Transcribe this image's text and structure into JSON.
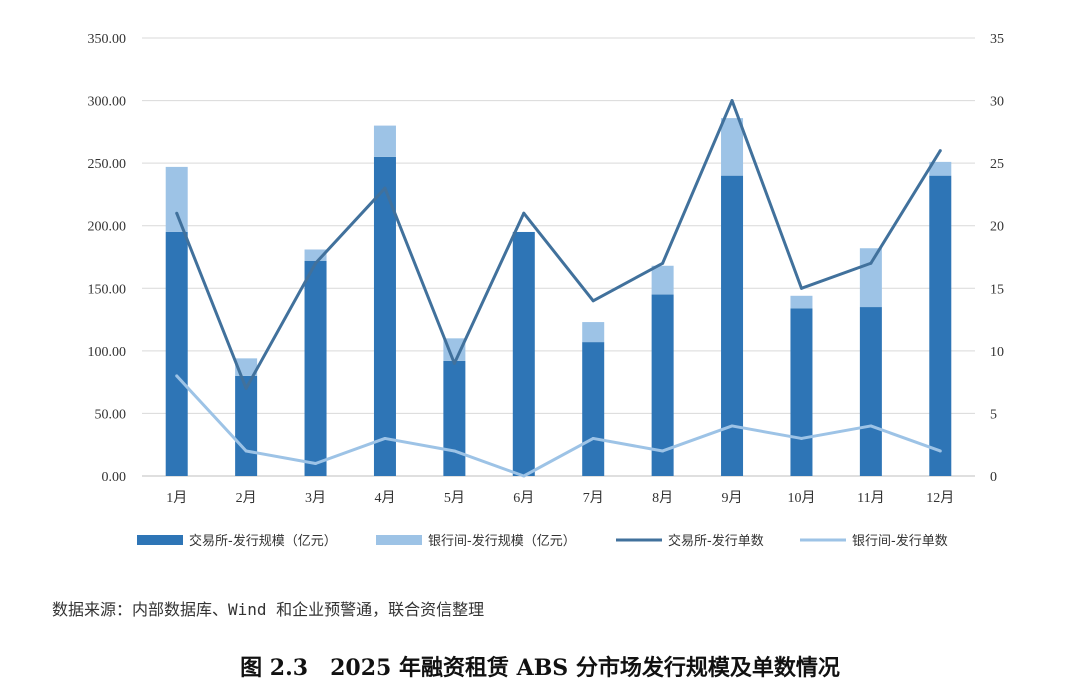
{
  "chart_data": {
    "type": "bar",
    "categories": [
      "1月",
      "2月",
      "3月",
      "4月",
      "5月",
      "6月",
      "7月",
      "8月",
      "9月",
      "10月",
      "11月",
      "12月"
    ],
    "y_left": {
      "ticks": [
        "0.00",
        "50.00",
        "100.00",
        "150.00",
        "200.00",
        "250.00",
        "300.00",
        "350.00"
      ],
      "ylim": [
        0,
        350
      ]
    },
    "y_right": {
      "ticks": [
        "0",
        "5",
        "10",
        "15",
        "20",
        "25",
        "30",
        "35"
      ],
      "ylim": [
        0,
        35
      ]
    },
    "grid": true,
    "legend_position": "bottom",
    "series": [
      {
        "name": "交易所-发行规模（亿元）",
        "type": "bar",
        "stack": "scale",
        "axis": "left",
        "color": "#2e75b6",
        "values": [
          195,
          80,
          172,
          255,
          92,
          195,
          107,
          145,
          240,
          134,
          135,
          240
        ]
      },
      {
        "name": "银行间-发行规模（亿元）",
        "type": "bar",
        "stack": "scale",
        "axis": "left",
        "color": "#9dc3e6",
        "values": [
          52,
          14,
          9,
          25,
          18,
          0,
          16,
          23,
          46,
          10,
          47,
          11
        ]
      },
      {
        "name": "交易所-发行单数",
        "type": "line",
        "axis": "right",
        "color": "#41719c",
        "values": [
          21,
          7,
          17,
          23,
          9,
          21,
          14,
          17,
          30,
          15,
          17,
          26
        ]
      },
      {
        "name": "银行间-发行单数",
        "type": "line",
        "axis": "right",
        "color": "#9dc3e6",
        "values": [
          8,
          2,
          1,
          3,
          2,
          0,
          3,
          2,
          4,
          3,
          4,
          2
        ]
      }
    ]
  },
  "footer": {
    "source_note": "数据来源：内部数据库、Wind 和企业预警通，联合资信整理",
    "caption": "图 2.3　2025 年融资租赁 ABS 分市场发行规模及单数情况"
  }
}
